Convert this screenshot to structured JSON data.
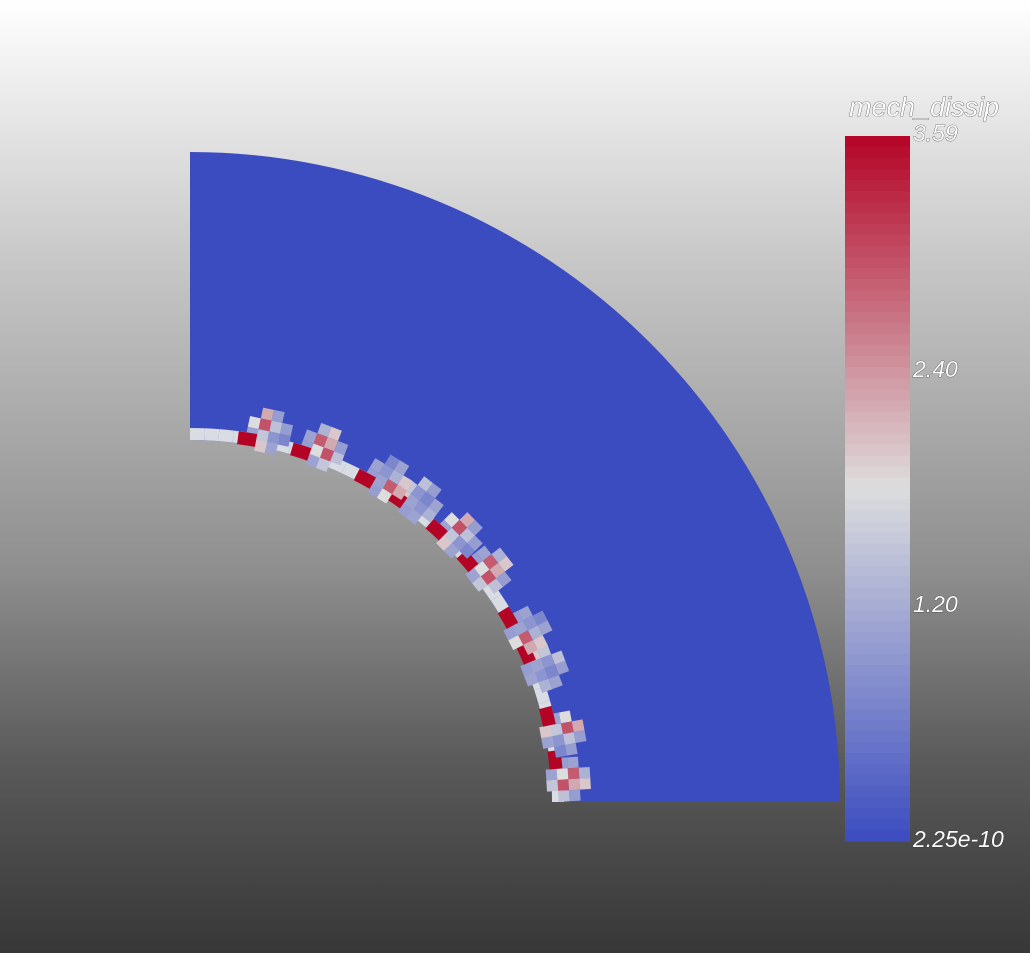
{
  "colorbar": {
    "title": "mech_dissip",
    "max_label": "3.59",
    "tick_labels": [
      "2.40",
      "1.20"
    ],
    "min_label": "2.25e-10",
    "min": 2.25e-10,
    "max": 3.59,
    "ticks": [
      2.4,
      1.2
    ],
    "colormap": "cool-to-warm",
    "colors": {
      "low": "#3b4cc0",
      "mid": "#dddddd",
      "high": "#b40426"
    }
  },
  "plot": {
    "background": "vertical gradient white to dark gray",
    "field_color": "#3b4cc0",
    "band_color": "#d9dce3"
  }
}
